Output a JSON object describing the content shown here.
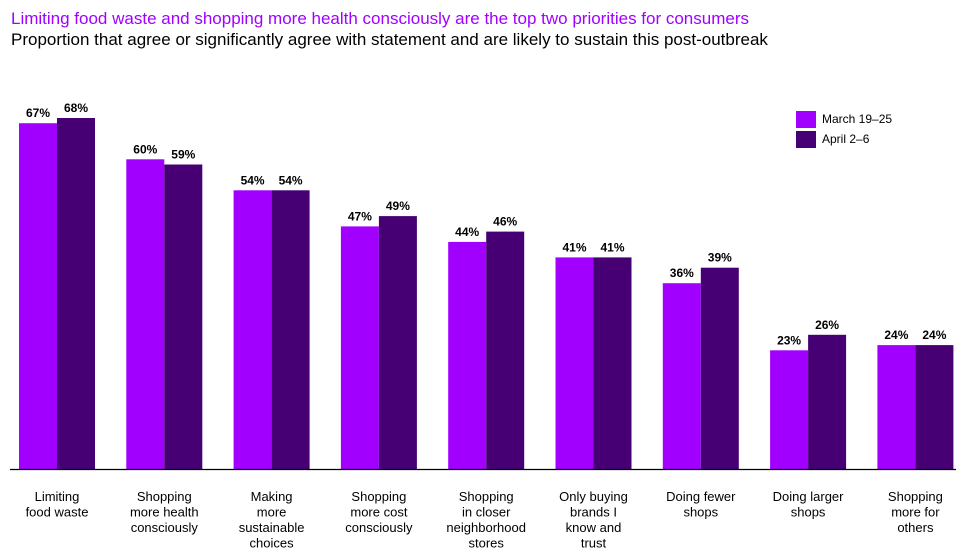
{
  "header": {
    "title": "Limiting food waste and shopping more health consciously are the top two priorities for consumers",
    "subtitle": "Proportion that agree or significantly agree with statement and are likely to sustain this post-outbreak"
  },
  "colors": {
    "series1": "#a100ff",
    "series2": "#460073",
    "axis": "#000000"
  },
  "chart_data": {
    "type": "bar",
    "title": "Limiting food waste and shopping more health consciously are the top two priorities for consumers",
    "subtitle": "Proportion that agree or significantly agree with statement and are likely to sustain this post-outbreak",
    "categories": [
      [
        "Limiting",
        "food waste"
      ],
      [
        "Shopping",
        "more health",
        "consciously"
      ],
      [
        "Making",
        "more",
        "sustainable",
        "choices"
      ],
      [
        "Shopping",
        "more cost",
        "consciously"
      ],
      [
        "Shopping",
        "in closer",
        "neighborhood",
        "stores"
      ],
      [
        "Only buying",
        "brands I",
        "know and",
        "trust"
      ],
      [
        "Doing fewer",
        "shops"
      ],
      [
        "Doing larger",
        "shops"
      ],
      [
        "Shopping",
        "more for",
        "others"
      ]
    ],
    "series": [
      {
        "name": "March 19–25",
        "values": [
          67,
          60,
          54,
          47,
          44,
          41,
          36,
          23,
          24
        ],
        "labels": [
          "67%",
          "60%",
          "54%",
          "47%",
          "44%",
          "41%",
          "36%",
          "23%",
          "24%"
        ]
      },
      {
        "name": "April 2–6",
        "values": [
          68,
          59,
          54,
          49,
          46,
          41,
          39,
          26,
          24
        ],
        "labels": [
          "68%",
          "59%",
          "54%",
          "49%",
          "46%",
          "41%",
          "39%",
          "26%",
          "24%"
        ]
      }
    ],
    "ylim": [
      0,
      68
    ],
    "grid": false,
    "legend": "top-right",
    "xlabel": "",
    "ylabel": ""
  }
}
